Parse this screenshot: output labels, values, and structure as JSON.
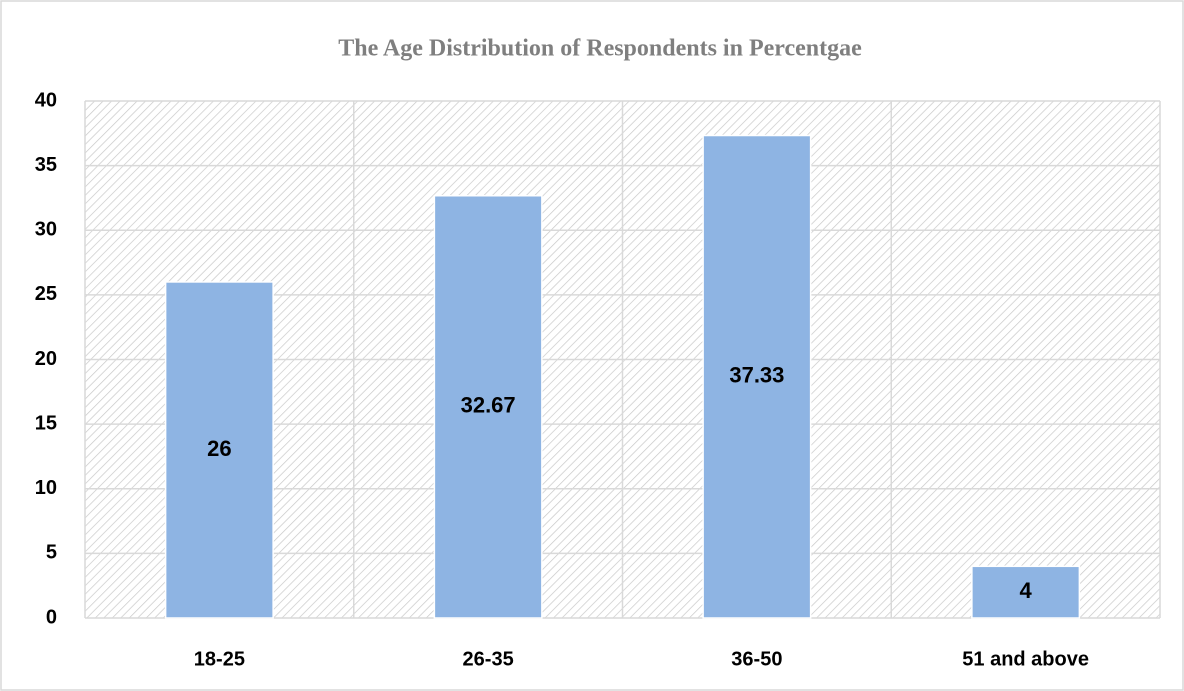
{
  "chart_data": {
    "type": "bar",
    "title": "The Age Distribution of Respondents in Percentgae",
    "categories": [
      "18-25",
      "26-35",
      "36-50",
      "51 and above"
    ],
    "values": [
      26,
      32.67,
      37.33,
      4
    ],
    "color": "#8eb4e3",
    "ylim": [
      0,
      40
    ],
    "yticks": [
      0,
      5,
      10,
      15,
      20,
      25,
      30,
      35,
      40
    ],
    "grid": true,
    "data_labels": true
  }
}
